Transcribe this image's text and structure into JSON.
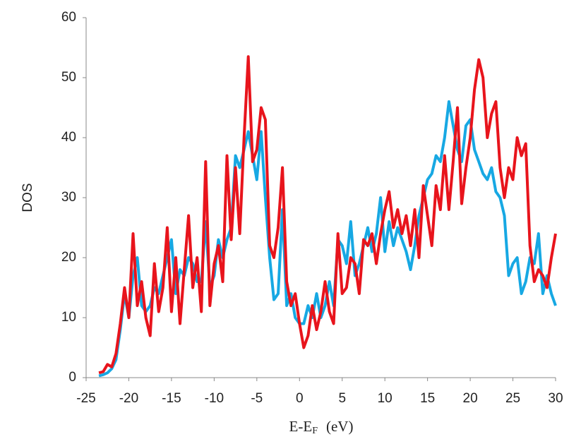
{
  "chart_data": {
    "type": "line",
    "ylabel": "DOS",
    "xlabel": {
      "text": "E-E",
      "subscript": "F",
      "suffix": "(eV)"
    },
    "xlim": [
      -25,
      30
    ],
    "xticks": [
      -25,
      -20,
      -15,
      -10,
      -5,
      0,
      5,
      10,
      15,
      20,
      25,
      30
    ],
    "ylim": [
      0,
      60
    ],
    "yticks": [
      0,
      10,
      20,
      30,
      40,
      50,
      60
    ],
    "grid": false,
    "x": [
      -23.5,
      -23,
      -22.5,
      -22,
      -21.5,
      -21,
      -20.5,
      -20,
      -19.5,
      -19,
      -18.5,
      -18,
      -17.5,
      -17,
      -16.5,
      -16,
      -15.5,
      -15,
      -14.5,
      -14,
      -13.5,
      -13,
      -12.5,
      -12,
      -11.5,
      -11,
      -10.5,
      -10,
      -9.5,
      -9,
      -8.5,
      -8,
      -7.5,
      -7,
      -6.5,
      -6,
      -5.5,
      -5,
      -4.5,
      -4,
      -3.5,
      -3,
      -2.5,
      -2,
      -1.5,
      -1,
      -0.5,
      0,
      0.5,
      1,
      1.5,
      2,
      2.5,
      3,
      3.5,
      4,
      4.5,
      5,
      5.5,
      6,
      6.5,
      7,
      7.5,
      8,
      8.5,
      9,
      9.5,
      10,
      10.5,
      11,
      11.5,
      12,
      12.5,
      13,
      13.5,
      14,
      14.5,
      15,
      15.5,
      16,
      16.5,
      17,
      17.5,
      18,
      18.5,
      19,
      19.5,
      20,
      20.5,
      21,
      21.5,
      22,
      22.5,
      23,
      23.5,
      24,
      24.5,
      25,
      25.5,
      26,
      26.5,
      27,
      27.5,
      28,
      28.5,
      29,
      29.5,
      30
    ],
    "series": [
      {
        "color": "#17a8e3",
        "values": [
          0.3,
          0.5,
          0.8,
          1.5,
          3,
          8,
          14,
          10,
          17,
          20,
          12,
          11,
          12,
          15,
          14,
          17,
          20,
          23,
          14,
          18,
          17,
          20,
          19,
          16,
          16,
          26,
          15,
          17,
          23,
          20,
          23,
          25,
          37,
          35,
          38,
          41,
          37,
          33,
          41,
          30,
          20,
          13,
          14,
          28,
          12,
          14,
          10,
          9,
          9,
          12,
          10,
          14,
          10,
          12,
          16,
          12,
          23,
          22,
          19,
          26,
          17,
          19,
          22,
          25,
          21,
          24,
          30,
          21,
          26,
          22,
          25,
          23,
          21,
          18,
          22,
          27,
          30,
          33,
          34,
          37,
          36,
          40,
          46,
          42,
          38,
          36,
          42,
          43,
          38,
          36,
          34,
          33,
          35,
          31,
          30,
          27,
          17,
          19,
          20,
          14,
          16,
          20,
          19,
          24,
          14,
          17,
          14,
          12
        ]
      },
      {
        "color": "#e8141c",
        "values": [
          0.8,
          1.0,
          2.2,
          1.8,
          4,
          9,
          15,
          10,
          24,
          12,
          16,
          10,
          7,
          19,
          11,
          15,
          25,
          11,
          20,
          9,
          18,
          27,
          15,
          20,
          11,
          36,
          12,
          19,
          22,
          16,
          37,
          23,
          35,
          24,
          40,
          53.5,
          36,
          38,
          45,
          43,
          22,
          20,
          25,
          35,
          16,
          12,
          14,
          9,
          5,
          7,
          12,
          8,
          11,
          16,
          11,
          9,
          24,
          14,
          15,
          20,
          19,
          14,
          23,
          22,
          24,
          19,
          24,
          28,
          31,
          25,
          28,
          24,
          27,
          22,
          28,
          20,
          32,
          27,
          22,
          32,
          28,
          37,
          28,
          36,
          45,
          29,
          35,
          40,
          48,
          53,
          50,
          40,
          44,
          46,
          35,
          30,
          35,
          33,
          40,
          37,
          39,
          22,
          16,
          18,
          17,
          15,
          20,
          24
        ]
      }
    ]
  }
}
